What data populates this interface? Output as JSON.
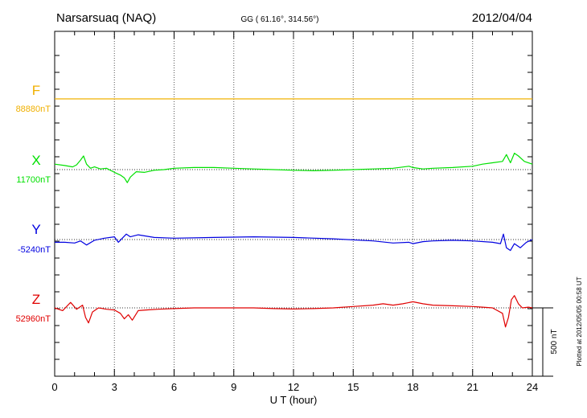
{
  "header": {
    "station": "Narsarsuaq (NAQ)",
    "coords": "GG ( 61.16°, 314.56°)",
    "date": "2012/04/04"
  },
  "footer": {
    "plotted": "Plotted at 2012/05/05 00:58 UT"
  },
  "chart_data": {
    "type": "line",
    "xlabel": "U T (hour)",
    "xlim": [
      0,
      24
    ],
    "x_ticks": [
      "0",
      "3",
      "6",
      "9",
      "12",
      "15",
      "18",
      "21",
      "24"
    ],
    "grid": "dotted vertical lines every 3 hours",
    "scale_bar": {
      "label": "500 nT",
      "value_nT": 500
    },
    "series": [
      {
        "name": "F",
        "baseline_label": "88880nT",
        "color": "#f0b000",
        "points": [
          [
            0,
            0
          ],
          [
            6,
            0
          ],
          [
            12,
            0
          ],
          [
            18,
            0
          ],
          [
            24,
            0
          ]
        ]
      },
      {
        "name": "X",
        "baseline_label": "11700nT",
        "color": "#00e000",
        "points": [
          [
            0,
            40
          ],
          [
            0.5,
            30
          ],
          [
            0.9,
            20
          ],
          [
            1.1,
            35
          ],
          [
            1.3,
            70
          ],
          [
            1.45,
            100
          ],
          [
            1.6,
            40
          ],
          [
            1.8,
            10
          ],
          [
            2.0,
            20
          ],
          [
            2.3,
            5
          ],
          [
            2.6,
            10
          ],
          [
            3.0,
            -20
          ],
          [
            3.3,
            -40
          ],
          [
            3.5,
            -60
          ],
          [
            3.65,
            -95
          ],
          [
            3.8,
            -55
          ],
          [
            4.1,
            -15
          ],
          [
            4.5,
            -20
          ],
          [
            5.0,
            -5
          ],
          [
            5.5,
            0
          ],
          [
            6.0,
            10
          ],
          [
            7.0,
            15
          ],
          [
            8.0,
            15
          ],
          [
            9.0,
            10
          ],
          [
            10.0,
            5
          ],
          [
            11.0,
            0
          ],
          [
            12.0,
            -5
          ],
          [
            13.0,
            -8
          ],
          [
            14.0,
            -5
          ],
          [
            15.0,
            0
          ],
          [
            16.0,
            5
          ],
          [
            17.0,
            10
          ],
          [
            17.8,
            25
          ],
          [
            18.0,
            15
          ],
          [
            18.5,
            5
          ],
          [
            19.0,
            10
          ],
          [
            20.0,
            15
          ],
          [
            21.0,
            25
          ],
          [
            21.5,
            40
          ],
          [
            22.0,
            50
          ],
          [
            22.5,
            60
          ],
          [
            22.7,
            110
          ],
          [
            22.9,
            50
          ],
          [
            23.1,
            120
          ],
          [
            23.3,
            100
          ],
          [
            23.6,
            60
          ],
          [
            24.0,
            40
          ]
        ]
      },
      {
        "name": "Y",
        "baseline_label": "-5240nT",
        "color": "#0000e0",
        "points": [
          [
            0,
            -20
          ],
          [
            0.5,
            -20
          ],
          [
            1.0,
            -25
          ],
          [
            1.3,
            -10
          ],
          [
            1.6,
            -40
          ],
          [
            2.0,
            -5
          ],
          [
            2.5,
            10
          ],
          [
            3.0,
            20
          ],
          [
            3.2,
            -20
          ],
          [
            3.4,
            10
          ],
          [
            3.6,
            40
          ],
          [
            3.8,
            20
          ],
          [
            4.2,
            35
          ],
          [
            5.0,
            15
          ],
          [
            6.0,
            10
          ],
          [
            8.0,
            15
          ],
          [
            10.0,
            20
          ],
          [
            12.0,
            15
          ],
          [
            14.0,
            5
          ],
          [
            16.0,
            -10
          ],
          [
            17.0,
            -25
          ],
          [
            17.8,
            -20
          ],
          [
            18.0,
            -30
          ],
          [
            18.5,
            -15
          ],
          [
            19.0,
            -10
          ],
          [
            20.0,
            -5
          ],
          [
            21.0,
            -10
          ],
          [
            22.0,
            -20
          ],
          [
            22.4,
            -30
          ],
          [
            22.55,
            40
          ],
          [
            22.7,
            -60
          ],
          [
            22.9,
            -80
          ],
          [
            23.1,
            -30
          ],
          [
            23.4,
            -60
          ],
          [
            23.7,
            -20
          ],
          [
            24.0,
            0
          ]
        ]
      },
      {
        "name": "Z",
        "baseline_label": "52960nT",
        "color": "#e00000",
        "points": [
          [
            0,
            0
          ],
          [
            0.4,
            -20
          ],
          [
            0.8,
            40
          ],
          [
            1.1,
            -10
          ],
          [
            1.4,
            20
          ],
          [
            1.55,
            -70
          ],
          [
            1.7,
            -110
          ],
          [
            1.9,
            -30
          ],
          [
            2.2,
            0
          ],
          [
            2.6,
            -10
          ],
          [
            3.0,
            -15
          ],
          [
            3.3,
            -40
          ],
          [
            3.5,
            -80
          ],
          [
            3.7,
            -50
          ],
          [
            3.9,
            -90
          ],
          [
            4.2,
            -20
          ],
          [
            4.6,
            -15
          ],
          [
            5.2,
            -10
          ],
          [
            6.0,
            -5
          ],
          [
            7.0,
            0
          ],
          [
            8.0,
            0
          ],
          [
            9.0,
            0
          ],
          [
            10.0,
            0
          ],
          [
            11.0,
            -5
          ],
          [
            12.0,
            -8
          ],
          [
            13.0,
            -5
          ],
          [
            14.0,
            0
          ],
          [
            15.0,
            10
          ],
          [
            16.0,
            20
          ],
          [
            16.5,
            30
          ],
          [
            17.0,
            20
          ],
          [
            17.5,
            30
          ],
          [
            18.0,
            45
          ],
          [
            18.5,
            30
          ],
          [
            19.0,
            20
          ],
          [
            20.0,
            15
          ],
          [
            21.0,
            10
          ],
          [
            21.5,
            5
          ],
          [
            22.0,
            0
          ],
          [
            22.5,
            -40
          ],
          [
            22.65,
            -140
          ],
          [
            22.8,
            -70
          ],
          [
            22.95,
            60
          ],
          [
            23.1,
            90
          ],
          [
            23.3,
            30
          ],
          [
            23.5,
            0
          ],
          [
            23.8,
            5
          ],
          [
            24.0,
            0
          ]
        ]
      }
    ]
  }
}
